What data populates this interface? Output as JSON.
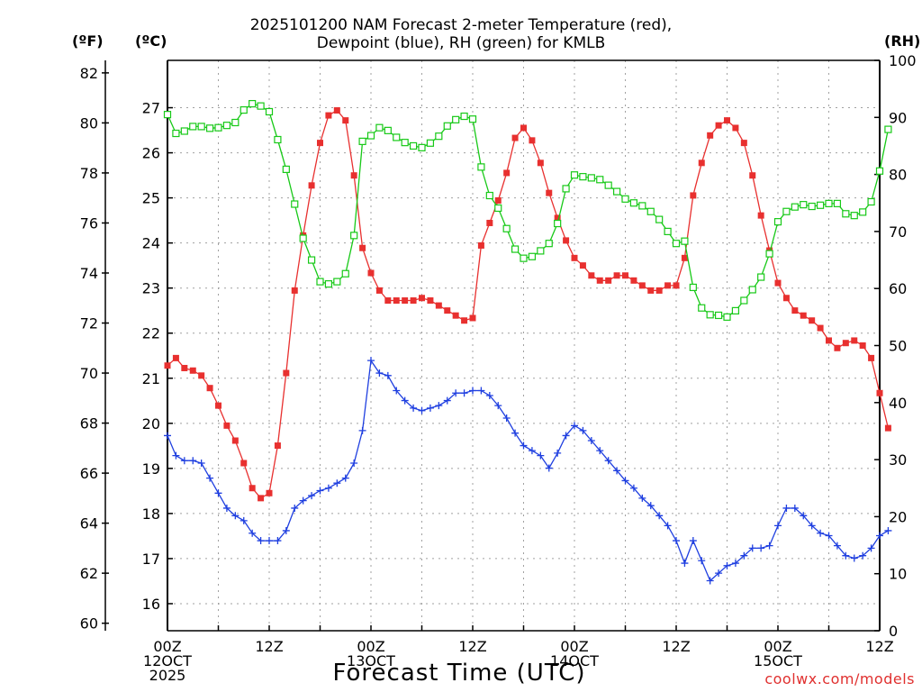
{
  "title_line1": "2025101200 NAM Forecast 2-meter Temperature (red),",
  "title_line2": "Dewpoint (blue), RH (green) for KMLB",
  "unit_left_f": "(ºF)",
  "unit_left_c": "(ºC)",
  "unit_right": "(RH)",
  "x_axis_title": "Forecast Time (UTC)",
  "credit": "coolwx.com/models",
  "colors": {
    "temperature": "#e8302f",
    "dewpoint": "#1f3fe0",
    "rh": "#17c917",
    "grid": "#a0a0a0"
  },
  "chart_data": {
    "type": "line",
    "time_step_hours": 1,
    "x_ticks": [
      {
        "hour": 0,
        "lines": [
          "00Z",
          "12OCT",
          "2025"
        ]
      },
      {
        "hour": 12,
        "lines": [
          "12Z"
        ]
      },
      {
        "hour": 24,
        "lines": [
          "00Z",
          "13OCT"
        ]
      },
      {
        "hour": 36,
        "lines": [
          "12Z"
        ]
      },
      {
        "hour": 48,
        "lines": [
          "00Z",
          "14OCT"
        ]
      },
      {
        "hour": 60,
        "lines": [
          "12Z"
        ]
      },
      {
        "hour": 72,
        "lines": [
          "00Z",
          "15OCT"
        ]
      },
      {
        "hour": 84,
        "lines": [
          "12Z"
        ]
      }
    ],
    "xlim": [
      0,
      84
    ],
    "y_axes": {
      "fahrenheit": {
        "range": [
          59.7,
          82.5
        ],
        "ticks": [
          60,
          62,
          64,
          66,
          68,
          70,
          72,
          74,
          76,
          78,
          80,
          82
        ]
      },
      "celsius": {
        "range": [
          15.4,
          28.05
        ],
        "ticks": [
          16,
          17,
          18,
          19,
          20,
          21,
          22,
          23,
          24,
          25,
          26,
          27
        ]
      },
      "rh": {
        "range": [
          0,
          100
        ],
        "ticks": [
          0,
          10,
          20,
          30,
          40,
          50,
          60,
          70,
          80,
          90,
          100
        ]
      }
    },
    "grid": true,
    "series": [
      {
        "name": "Temperature",
        "unit": "F",
        "marker": "filled-square",
        "values": [
          70.3,
          70.6,
          70.2,
          70.1,
          69.9,
          69.4,
          68.7,
          67.9,
          67.3,
          66.4,
          65.4,
          65.0,
          65.2,
          67.1,
          70.0,
          73.3,
          75.5,
          77.5,
          79.2,
          80.3,
          80.5,
          80.1,
          77.9,
          75.0,
          74.0,
          73.3,
          72.9,
          72.9,
          72.9,
          72.9,
          73.0,
          72.9,
          72.7,
          72.5,
          72.3,
          72.1,
          72.2,
          75.1,
          76.0,
          76.9,
          78.0,
          79.4,
          79.8,
          79.3,
          78.4,
          77.2,
          76.2,
          75.3,
          74.6,
          74.3,
          73.9,
          73.7,
          73.7,
          73.9,
          73.9,
          73.7,
          73.5,
          73.3,
          73.3,
          73.5,
          73.5,
          74.6,
          77.1,
          78.4,
          79.5,
          79.9,
          80.1,
          79.8,
          79.2,
          77.9,
          76.3,
          74.9,
          73.6,
          73.0,
          72.5,
          72.3,
          72.1,
          71.8,
          71.3,
          71.0,
          71.2,
          71.3,
          71.1,
          70.6,
          69.2,
          67.8
        ]
      },
      {
        "name": "Dewpoint",
        "unit": "F",
        "marker": "plus",
        "values": [
          67.5,
          66.7,
          66.5,
          66.5,
          66.4,
          65.8,
          65.2,
          64.6,
          64.3,
          64.1,
          63.6,
          63.3,
          63.3,
          63.3,
          63.7,
          64.6,
          64.9,
          65.1,
          65.3,
          65.4,
          65.6,
          65.8,
          66.4,
          67.7,
          70.5,
          70.0,
          69.9,
          69.3,
          68.9,
          68.6,
          68.5,
          68.6,
          68.7,
          68.9,
          69.2,
          69.2,
          69.3,
          69.3,
          69.1,
          68.7,
          68.2,
          67.6,
          67.1,
          66.9,
          66.7,
          66.2,
          66.8,
          67.5,
          67.9,
          67.7,
          67.3,
          66.9,
          66.5,
          66.1,
          65.7,
          65.4,
          65.0,
          64.7,
          64.3,
          63.9,
          63.3,
          62.4,
          63.3,
          62.5,
          61.7,
          62.0,
          62.3,
          62.4,
          62.7,
          63.0,
          63.0,
          63.1,
          63.9,
          64.6,
          64.6,
          64.3,
          63.9,
          63.6,
          63.5,
          63.1,
          62.7,
          62.6,
          62.7,
          63.0,
          63.5,
          63.7
        ]
      },
      {
        "name": "RH",
        "unit": "%",
        "marker": "open-square",
        "values": [
          90.5,
          87.2,
          87.6,
          88.4,
          88.4,
          88.1,
          88.2,
          88.6,
          89.1,
          91.3,
          92.4,
          92.0,
          91.0,
          86.1,
          80.9,
          74.8,
          68.8,
          65.0,
          61.2,
          60.8,
          61.2,
          62.6,
          69.3,
          85.8,
          86.8,
          88.2,
          87.7,
          86.5,
          85.6,
          85.0,
          84.7,
          85.5,
          86.7,
          88.5,
          89.6,
          90.2,
          89.7,
          81.3,
          76.3,
          74.1,
          70.5,
          66.9,
          65.3,
          65.6,
          66.6,
          67.9,
          71.4,
          77.5,
          79.9,
          79.6,
          79.4,
          79.1,
          78.1,
          77.0,
          75.7,
          75.0,
          74.5,
          73.5,
          72.1,
          70.0,
          67.9,
          68.3,
          60.2,
          56.6,
          55.4,
          55.3,
          55.0,
          56.1,
          57.9,
          59.8,
          62.0,
          66.1,
          71.7,
          73.5,
          74.3,
          74.7,
          74.4,
          74.6,
          74.9,
          74.9,
          73.1,
          72.8,
          73.4,
          75.2,
          80.6,
          87.9
        ]
      }
    ]
  }
}
